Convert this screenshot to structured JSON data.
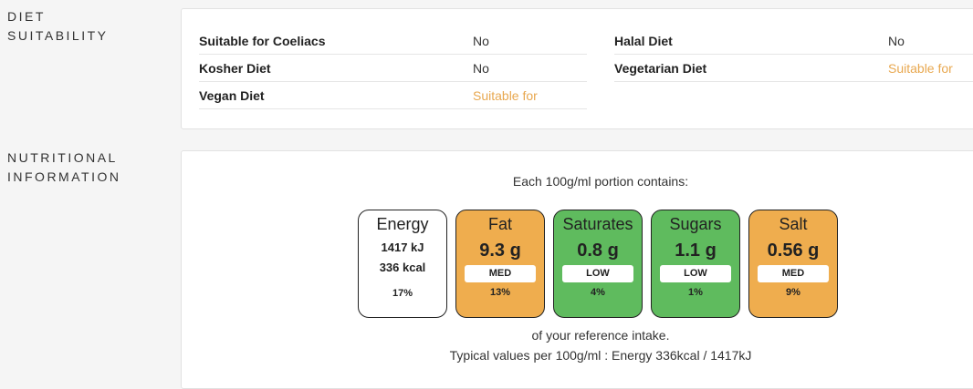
{
  "diet": {
    "section_label_1": "DIET",
    "section_label_2": "SUITABILITY",
    "left": [
      {
        "name": "Suitable for Coeliacs",
        "value": "No",
        "suitable": false
      },
      {
        "name": "Kosher Diet",
        "value": "No",
        "suitable": false
      },
      {
        "name": "Vegan Diet",
        "value": "Suitable for",
        "suitable": true
      }
    ],
    "right": [
      {
        "name": "Halal Diet",
        "value": "No",
        "suitable": false
      },
      {
        "name": "Vegetarian Diet",
        "value": "Suitable for",
        "suitable": true
      }
    ]
  },
  "nutrition": {
    "section_label_1": "NUTRITIONAL",
    "section_label_2": "INFORMATION",
    "portion_text": "Each 100g/ml portion contains:",
    "energy": {
      "title": "Energy",
      "kj": "1417 kJ",
      "kcal": "336 kcal",
      "pct": "17%"
    },
    "items": [
      {
        "title": "Fat",
        "amount": "9.3 g",
        "level": "MED",
        "pct": "13%",
        "color": "#efad4e"
      },
      {
        "title": "Saturates",
        "amount": "0.8 g",
        "level": "LOW",
        "pct": "4%",
        "color": "#5fbb5e"
      },
      {
        "title": "Sugars",
        "amount": "1.1 g",
        "level": "LOW",
        "pct": "1%",
        "color": "#5fbb5e"
      },
      {
        "title": "Salt",
        "amount": "0.56 g",
        "level": "MED",
        "pct": "9%",
        "color": "#efad4e"
      }
    ],
    "reference_text": "of your reference intake.",
    "typical_text": "Typical values per 100g/ml : Energy 336kcal / 1417kJ"
  }
}
